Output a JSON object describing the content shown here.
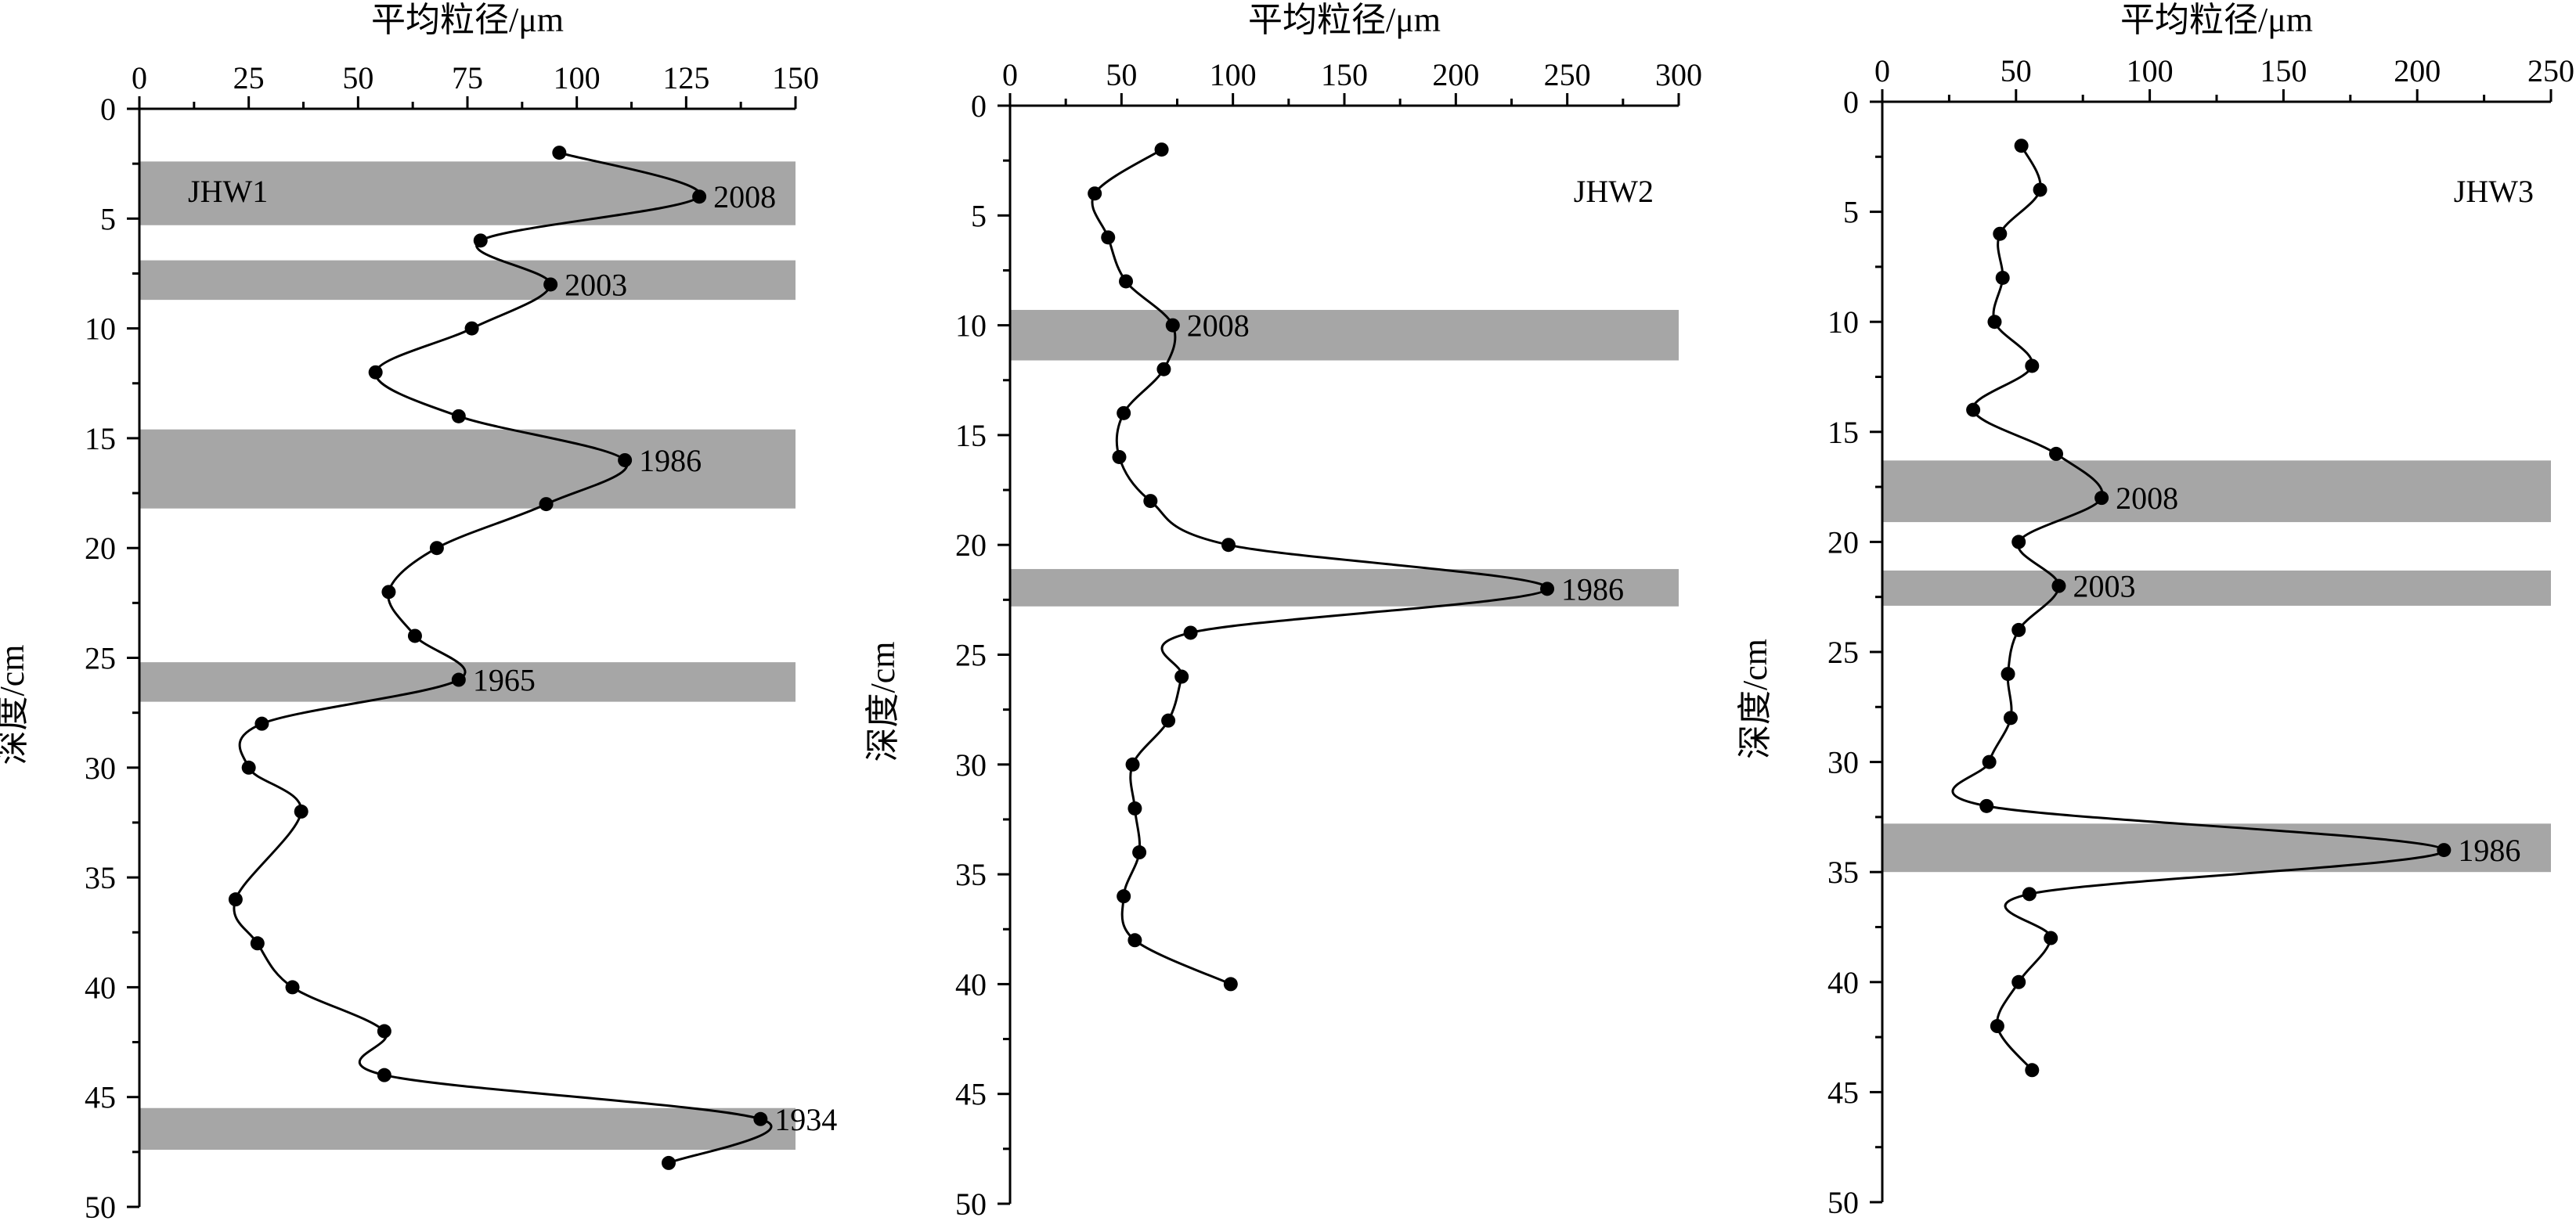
{
  "colors": {
    "band": "#a6a6a6",
    "line": "#000000",
    "marker": "#000000"
  },
  "chart_data": [
    {
      "type": "line",
      "panel_label": "JHW1",
      "xlabel": "平均粒径/μm",
      "ylabel": "深度/cm",
      "xlim": [
        0,
        150
      ],
      "ylim": [
        50,
        0
      ],
      "x_axis_position": "top",
      "xticks": [
        "0",
        "25",
        "50",
        "75",
        "100",
        "125",
        "150"
      ],
      "yticks": [
        "0",
        "5",
        "10",
        "15",
        "20",
        "25",
        "30",
        "35",
        "40",
        "45",
        "50"
      ],
      "grid": false,
      "legend": "none",
      "series": [
        {
          "x": [
            96,
            128,
            78,
            94,
            76,
            54,
            73,
            111,
            93,
            68,
            57,
            63,
            73,
            28,
            25,
            37,
            22,
            27,
            35,
            56,
            56,
            142,
            121
          ],
          "y": [
            2,
            4,
            6,
            8,
            10,
            12,
            14,
            16,
            18,
            20,
            22,
            24,
            26,
            28,
            30,
            32,
            36,
            38,
            40,
            42,
            44,
            46,
            48
          ]
        }
      ],
      "bands": [
        {
          "label": "2008",
          "from": 2.4,
          "to": 5.3,
          "label_x": 128,
          "label_y": 4
        },
        {
          "label": "2003",
          "from": 6.9,
          "to": 8.7,
          "label_x": 94,
          "label_y": 8
        },
        {
          "label": "1986",
          "from": 14.6,
          "to": 18.2,
          "label_x": 111,
          "label_y": 16
        },
        {
          "label": "1965",
          "from": 25.2,
          "to": 27.0,
          "label_x": 73,
          "label_y": 26
        },
        {
          "label": "1934",
          "from": 45.5,
          "to": 47.4,
          "label_x": 142,
          "label_y": 46
        }
      ]
    },
    {
      "type": "line",
      "panel_label": "JHW2",
      "xlabel": "平均粒径/μm",
      "ylabel": "深度/cm",
      "xlim": [
        0,
        300
      ],
      "ylim": [
        50,
        0
      ],
      "x_axis_position": "top",
      "xticks": [
        "0",
        "50",
        "100",
        "150",
        "200",
        "250",
        "300"
      ],
      "yticks": [
        "0",
        "5",
        "10",
        "15",
        "20",
        "25",
        "30",
        "35",
        "40",
        "45",
        "50"
      ],
      "grid": false,
      "legend": "none",
      "series": [
        {
          "x": [
            68,
            38,
            44,
            52,
            73,
            69,
            51,
            49,
            63,
            98,
            241,
            81,
            77,
            71,
            55,
            56,
            58,
            51,
            56,
            99
          ],
          "y": [
            2,
            4,
            6,
            8,
            10,
            12,
            14,
            16,
            18,
            20,
            22,
            24,
            26,
            28,
            30,
            32,
            34,
            36,
            38,
            40
          ]
        }
      ],
      "bands": [
        {
          "label": "2008",
          "from": 9.3,
          "to": 11.6,
          "label_x": 73,
          "label_y": 10
        },
        {
          "label": "1986",
          "from": 21.1,
          "to": 22.8,
          "label_x": 241,
          "label_y": 22
        }
      ]
    },
    {
      "type": "line",
      "panel_label": "JHW3",
      "xlabel": "平均粒径/μm",
      "ylabel": "深度/cm",
      "xlim": [
        0,
        250
      ],
      "ylim": [
        50,
        0
      ],
      "x_axis_position": "top",
      "xticks": [
        "0",
        "50",
        "100",
        "150",
        "200",
        "250"
      ],
      "yticks": [
        "0",
        "5",
        "10",
        "15",
        "20",
        "25",
        "30",
        "35",
        "40",
        "45",
        "50"
      ],
      "grid": false,
      "legend": "none",
      "series": [
        {
          "x": [
            52,
            59,
            44,
            45,
            42,
            56,
            34,
            65,
            82,
            51,
            66,
            51,
            47,
            48,
            40,
            39,
            210,
            55,
            63,
            51,
            43,
            56
          ],
          "y": [
            2,
            4,
            6,
            8,
            10,
            12,
            14,
            16,
            18,
            20,
            22,
            24,
            26,
            28,
            30,
            32,
            34,
            36,
            38,
            40,
            42,
            44
          ]
        }
      ],
      "bands": [
        {
          "label": "2008",
          "from": 16.3,
          "to": 19.1,
          "label_x": 82,
          "label_y": 18
        },
        {
          "label": "2003",
          "from": 21.3,
          "to": 22.9,
          "label_x": 66,
          "label_y": 22
        },
        {
          "label": "1986",
          "from": 32.8,
          "to": 35.0,
          "label_x": 210,
          "label_y": 34
        }
      ]
    }
  ]
}
